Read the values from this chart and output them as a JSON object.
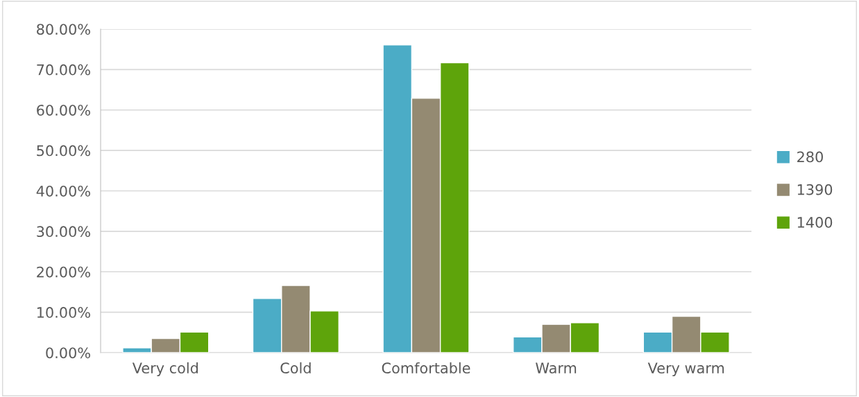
{
  "chart_data": {
    "type": "bar",
    "categories": [
      "Very cold",
      "Cold",
      "Comfortable",
      "Warm",
      "Very warm"
    ],
    "series": [
      {
        "name": "280",
        "color": "#4bacc6",
        "values": [
          1.2,
          13.4,
          76.1,
          3.9,
          5.1
        ]
      },
      {
        "name": "1390",
        "color": "#948a72",
        "values": [
          3.5,
          16.6,
          62.9,
          7.0,
          9.0
        ]
      },
      {
        "name": "1400",
        "color": "#5ea40b",
        "values": [
          5.1,
          10.3,
          71.7,
          7.4,
          5.1
        ]
      }
    ],
    "ylim": [
      0,
      80
    ],
    "yticks": [
      {
        "value": 0,
        "label": "0.00%"
      },
      {
        "value": 10,
        "label": "10.00%"
      },
      {
        "value": 20,
        "label": "20.00%"
      },
      {
        "value": 30,
        "label": "30.00%"
      },
      {
        "value": 40,
        "label": "40.00%"
      },
      {
        "value": 50,
        "label": "50.00%"
      },
      {
        "value": 60,
        "label": "60.00%"
      },
      {
        "value": 70,
        "label": "70.00%"
      },
      {
        "value": 80,
        "label": "80.00%"
      }
    ],
    "grid": "y",
    "legend": "right"
  }
}
